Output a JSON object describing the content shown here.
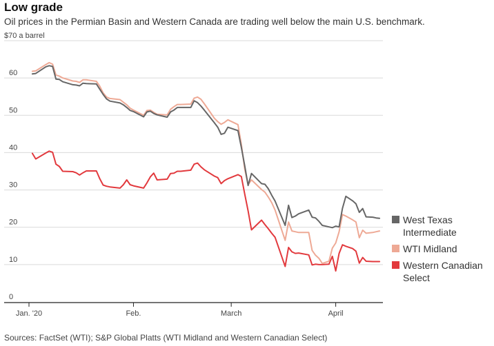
{
  "title": "Low grade",
  "subtitle": "Oil prices in the Permian Basin and Western Canada are trading well below the main U.S. benchmark.",
  "source": "Sources: FactSet (WTI); S&P Global Platts (WTI Midland and Western Canadian Select)",
  "colors": {
    "wti": "#666666",
    "midland": "#eea995",
    "wcs": "#e2393d",
    "grid": "#d9d9d9",
    "axis": "#222222"
  },
  "chart_data": {
    "type": "line",
    "title": "Low grade",
    "ylabel": "$70 a barrel",
    "ylim": [
      0,
      70
    ],
    "yticks": [
      0,
      10,
      20,
      30,
      40,
      50,
      60
    ],
    "ytick_labels": [
      "0",
      "10",
      "20",
      "30",
      "40",
      "50",
      "60"
    ],
    "ytop_label": "$70 a barrel",
    "xlim": [
      0,
      105
    ],
    "xticks": [
      {
        "x": 0,
        "label": "Jan. '20"
      },
      {
        "x": 31,
        "label": "Feb."
      },
      {
        "x": 60,
        "label": "March"
      },
      {
        "x": 91,
        "label": "April"
      }
    ],
    "series": [
      {
        "name": "West Texas Intermediate",
        "legend_label": [
          "West Texas",
          "Intermediate"
        ],
        "color_key": "wti",
        "x": [
          1,
          2,
          5,
          6,
          7,
          8,
          9,
          10,
          13,
          14,
          15,
          16,
          17,
          20,
          21,
          22,
          23,
          24,
          27,
          28,
          29,
          30,
          31,
          34,
          35,
          36,
          37,
          38,
          41,
          42,
          43,
          44,
          45,
          48,
          49,
          50,
          51,
          52,
          55,
          56,
          57,
          58,
          59,
          62,
          63,
          64,
          65,
          66,
          69,
          70,
          71,
          72,
          73,
          76,
          77,
          78,
          79,
          80,
          83,
          84,
          85,
          86,
          87,
          89,
          90,
          91,
          92,
          93,
          94,
          96,
          97,
          98,
          99,
          100,
          102,
          103,
          104
        ],
        "values": [
          61.1,
          61.2,
          63.0,
          63.3,
          63.1,
          59.7,
          59.6,
          59.0,
          58.2,
          58.1,
          57.9,
          58.6,
          58.5,
          58.4,
          57.0,
          55.6,
          54.4,
          53.8,
          53.3,
          52.8,
          52.1,
          51.3,
          51.0,
          49.6,
          50.9,
          51.1,
          50.5,
          50.1,
          49.5,
          50.9,
          51.4,
          52.1,
          52.1,
          52.1,
          53.9,
          53.4,
          52.5,
          51.4,
          48.0,
          46.8,
          44.9,
          45.2,
          46.8,
          45.9,
          41.4,
          36.5,
          31.2,
          34.4,
          31.7,
          31.5,
          30.3,
          28.6,
          27.0,
          20.5,
          25.9,
          22.6,
          23.0,
          23.6,
          24.6,
          22.7,
          22.5,
          21.6,
          20.5,
          20.1,
          19.9,
          20.3,
          20.1,
          25.1,
          28.3,
          27.1,
          26.3,
          24.0,
          25.0,
          22.8,
          22.7,
          22.5,
          22.4
        ]
      },
      {
        "name": "WTI Midland",
        "legend_label": [
          "WTI Midland"
        ],
        "color_key": "midland",
        "x": [
          1,
          2,
          5,
          6,
          7,
          8,
          9,
          10,
          13,
          14,
          15,
          16,
          17,
          20,
          21,
          22,
          23,
          24,
          27,
          28,
          29,
          30,
          31,
          34,
          35,
          36,
          37,
          38,
          41,
          42,
          43,
          44,
          45,
          48,
          49,
          50,
          51,
          52,
          55,
          56,
          57,
          58,
          59,
          62,
          63,
          64,
          65,
          66,
          69,
          70,
          71,
          72,
          73,
          76,
          77,
          78,
          79,
          80,
          83,
          84,
          85,
          86,
          87,
          89,
          90,
          91,
          92,
          93,
          94,
          96,
          97,
          98,
          99,
          100,
          102,
          103,
          104
        ],
        "values": [
          61.8,
          61.9,
          63.6,
          64.1,
          63.7,
          60.8,
          60.5,
          60.0,
          59.2,
          59.1,
          58.8,
          59.5,
          59.5,
          59.1,
          57.8,
          56.0,
          54.9,
          54.5,
          54.2,
          53.5,
          52.8,
          51.9,
          51.4,
          50.0,
          51.3,
          51.4,
          50.8,
          50.3,
          50.1,
          51.6,
          52.3,
          52.9,
          52.9,
          53.0,
          54.6,
          54.9,
          54.3,
          53.1,
          49.2,
          48.3,
          47.6,
          48.1,
          48.8,
          47.5,
          42.2,
          35.6,
          31.4,
          32.7,
          30.1,
          29.4,
          28.1,
          26.6,
          24.6,
          16.5,
          21.4,
          19.0,
          18.8,
          18.6,
          18.6,
          13.8,
          12.5,
          11.7,
          10.3,
          10.9,
          14.4,
          15.8,
          18.8,
          23.4,
          23.0,
          22.0,
          21.4,
          17.2,
          19.2,
          18.4,
          18.6,
          18.8,
          19.0
        ]
      },
      {
        "name": "Western Canadian Select",
        "legend_label": [
          "Western Canadian",
          "Select"
        ],
        "color_key": "wcs",
        "x": [
          1,
          2,
          5,
          6,
          7,
          8,
          9,
          10,
          13,
          14,
          15,
          16,
          17,
          20,
          21,
          22,
          23,
          24,
          27,
          28,
          29,
          30,
          31,
          34,
          35,
          36,
          37,
          38,
          41,
          42,
          43,
          44,
          45,
          48,
          49,
          50,
          51,
          52,
          55,
          56,
          57,
          58,
          59,
          62,
          63,
          64,
          65,
          66,
          69,
          70,
          71,
          72,
          73,
          76,
          77,
          78,
          79,
          80,
          83,
          84,
          85,
          86,
          87,
          89,
          90,
          91,
          92,
          93,
          94,
          96,
          97,
          98,
          99,
          100,
          102,
          103,
          104
        ],
        "values": [
          39.8,
          38.3,
          39.9,
          40.4,
          40.1,
          36.9,
          36.3,
          35.0,
          34.9,
          34.6,
          34.0,
          34.6,
          35.1,
          35.1,
          33.0,
          31.3,
          31.0,
          30.8,
          30.5,
          31.4,
          32.7,
          31.4,
          31.1,
          30.5,
          31.9,
          33.5,
          34.5,
          32.7,
          32.9,
          34.4,
          34.5,
          35.0,
          35.0,
          35.3,
          36.9,
          37.2,
          36.2,
          35.4,
          33.7,
          33.3,
          31.7,
          32.5,
          33.0,
          34.1,
          33.6,
          28.9,
          24.4,
          19.3,
          21.9,
          20.7,
          19.6,
          18.4,
          17.3,
          9.5,
          14.6,
          13.4,
          13.0,
          13.1,
          12.6,
          9.9,
          10.1,
          10.0,
          10.0,
          10.1,
          12.2,
          8.3,
          13.0,
          15.3,
          14.9,
          14.3,
          13.6,
          10.4,
          11.9,
          10.9,
          10.8,
          10.8,
          10.8
        ]
      }
    ],
    "legend_position": "right",
    "grid": true
  }
}
